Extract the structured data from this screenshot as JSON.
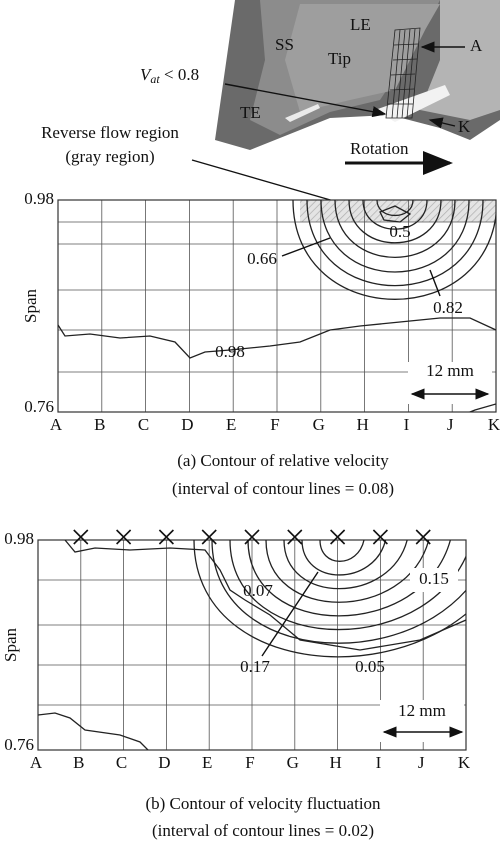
{
  "top_image": {
    "ss": "SS",
    "le": "LE",
    "tip": "Tip",
    "a": "A",
    "te": "TE",
    "k": "K",
    "vat": "V",
    "vat_sub": "at",
    "vat_rest": " < 0.8",
    "rotation": "Rotation",
    "reverse_flow": "Reverse flow region",
    "gray_region": "(gray region)"
  },
  "panel_a": {
    "y_top": "0.98",
    "y_bottom": "0.76",
    "y_label": "Span",
    "x_labels": [
      "A",
      "B",
      "C",
      "D",
      "E",
      "F",
      "G",
      "H",
      "I",
      "J",
      "K"
    ],
    "contour_labels": [
      "0.5",
      "0.66",
      "0.82",
      "0.98"
    ],
    "scale": "12 mm",
    "caption": "(a) Contour of relative velocity",
    "caption_note": "(interval of contour lines = 0.08)"
  },
  "panel_b": {
    "y_top": "0.98",
    "y_bottom": "0.76",
    "y_label": "Span",
    "x_labels": [
      "A",
      "B",
      "C",
      "D",
      "E",
      "F",
      "G",
      "H",
      "I",
      "J",
      "K"
    ],
    "contour_labels": [
      "0.07",
      "0.15",
      "0.17",
      "0.05"
    ],
    "scale": "12 mm",
    "caption": "(b) Contour of velocity fluctuation",
    "caption_note": "(interval of contour lines = 0.02)"
  }
}
